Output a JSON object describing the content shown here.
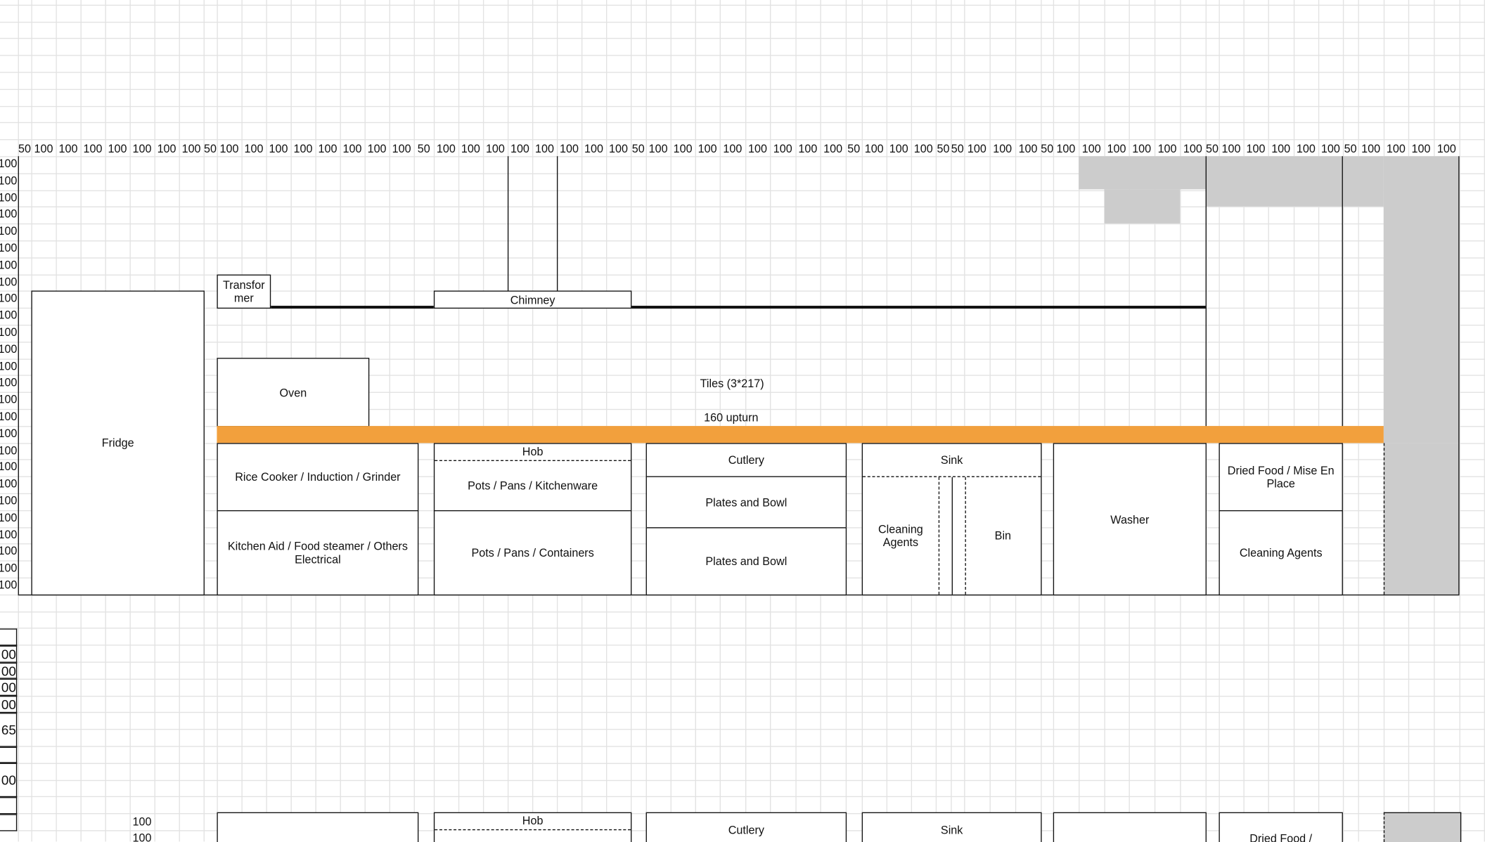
{
  "column_headers": [
    "50",
    "100",
    "100",
    "100",
    "100",
    "100",
    "100",
    "100",
    "50",
    "100",
    "100",
    "100",
    "100",
    "100",
    "100",
    "100",
    "100",
    "50",
    "100",
    "100",
    "100",
    "100",
    "100",
    "100",
    "100",
    "100",
    "50",
    "100",
    "100",
    "100",
    "100",
    "100",
    "100",
    "100",
    "100",
    "50",
    "100",
    "100",
    "100",
    "50",
    "50",
    "100",
    "100",
    "100",
    "50",
    "100",
    "100",
    "100",
    "100",
    "100",
    "100",
    "50",
    "100",
    "100",
    "100",
    "100",
    "100",
    "50",
    "100",
    "100",
    "100",
    "100"
  ],
  "row_label_value": "100",
  "lower_row_labels": [
    "",
    "00",
    "00",
    "00",
    "00",
    "65",
    "",
    "00",
    "",
    ""
  ],
  "lower_side_labels": [
    "100",
    "100"
  ],
  "colors": {
    "upturn": "#F2A03D",
    "wall": "#CCCCCC",
    "grid": "#E2E2E2"
  },
  "elevation": {
    "fridge": "Fridge",
    "transformer": "Transfor mer",
    "chimney": "Chimney",
    "oven": "Oven",
    "tiles": "Tiles (3*217)",
    "upturn": "160 upturn",
    "rice_cooker": "Rice Cooker / Induction / Grinder",
    "kitchen_aid": "Kitchen Aid / Food steamer / Others Electrical",
    "hob": "Hob",
    "pots_kitchenware": "Pots / Pans / Kitchenware",
    "pots_containers": "Pots / Pans / Containers",
    "cutlery": "Cutlery",
    "plates_1": "Plates and Bowl",
    "plates_2": "Plates and Bowl",
    "sink": "Sink",
    "cleaning_agents_sink": "Cleaning Agents",
    "bin": "Bin",
    "washer": "Washer",
    "dried_food": "Dried Food / Mise En Place",
    "cleaning_agents": "Cleaning Agents"
  },
  "plan_lower": {
    "hob": "Hob",
    "cutlery": "Cutlery",
    "sink": "Sink",
    "dried_food": "Dried Food /"
  }
}
